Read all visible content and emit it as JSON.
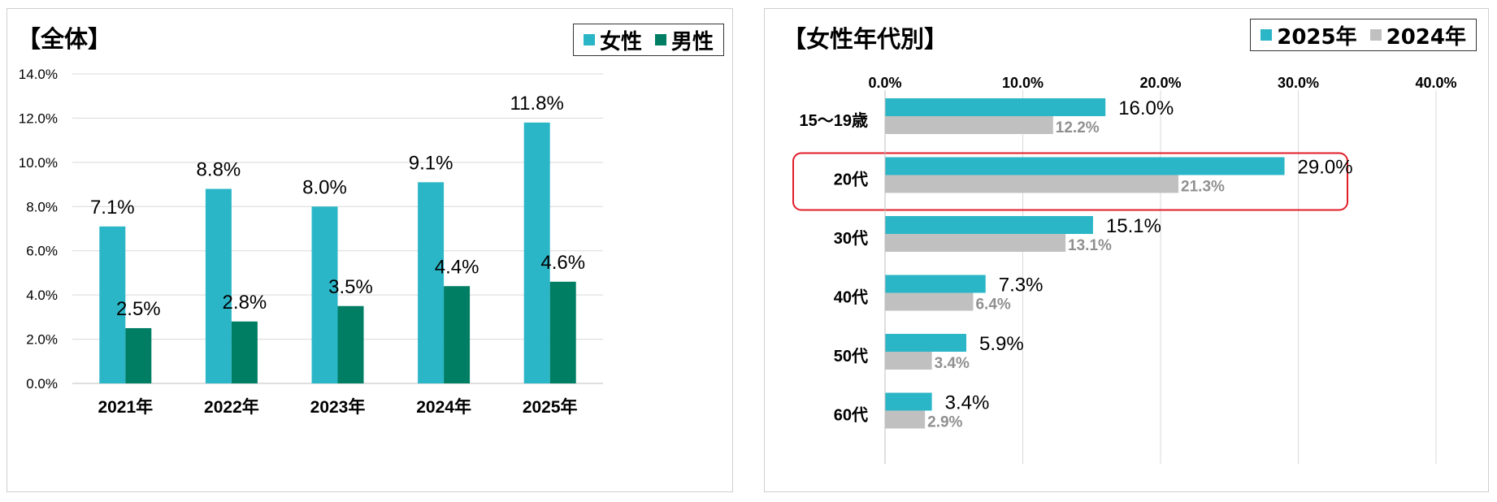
{
  "colors": {
    "teal": "#2bb6c7",
    "green": "#007e64",
    "gray": "#c0c0c0",
    "gray_label": "#909090",
    "grid": "#d9d9d9",
    "highlight": "#e21d2a"
  },
  "left": {
    "title": "【全体】",
    "legend": [
      "女性",
      "男性"
    ]
  },
  "right": {
    "title": "【女性年代別】",
    "legend": [
      "2025年",
      "2024年"
    ]
  },
  "chart_data": [
    {
      "type": "bar",
      "title": "【全体】",
      "categories": [
        "2021年",
        "2022年",
        "2023年",
        "2024年",
        "2025年"
      ],
      "series": [
        {
          "name": "女性",
          "values": [
            7.1,
            8.8,
            8.0,
            9.1,
            11.8
          ],
          "labels": [
            "7.1%",
            "8.8%",
            "8.0%",
            "9.1%",
            "11.8%"
          ]
        },
        {
          "name": "男性",
          "values": [
            2.5,
            2.8,
            3.5,
            4.4,
            4.6
          ],
          "labels": [
            "2.5%",
            "2.8%",
            "3.5%",
            "4.4%",
            "4.6%"
          ]
        }
      ],
      "ylim": [
        0,
        14
      ],
      "yticks": [
        "0.0%",
        "2.0%",
        "4.0%",
        "6.0%",
        "8.0%",
        "10.0%",
        "12.0%",
        "14.0%"
      ],
      "legend_position": "top-right",
      "grid": true
    },
    {
      "type": "bar",
      "orientation": "horizontal",
      "title": "【女性年代別】",
      "categories": [
        "15～19歳",
        "20代",
        "30代",
        "40代",
        "50代",
        "60代"
      ],
      "series": [
        {
          "name": "2025年",
          "values": [
            16.0,
            29.0,
            15.1,
            7.3,
            5.9,
            3.4
          ],
          "labels": [
            "16.0%",
            "29.0%",
            "15.1%",
            "7.3%",
            "5.9%",
            "3.4%"
          ]
        },
        {
          "name": "2024年",
          "values": [
            12.2,
            21.3,
            13.1,
            6.4,
            3.4,
            2.9
          ],
          "labels": [
            "12.2%",
            "21.3%",
            "13.1%",
            "6.4%",
            "3.4%",
            "2.9%"
          ]
        }
      ],
      "xlim": [
        0,
        40
      ],
      "xticks": [
        "0.0%",
        "10.0%",
        "20.0%",
        "30.0%",
        "40.0%"
      ],
      "highlighted_category": "20代",
      "legend_position": "top-right",
      "grid": true
    }
  ]
}
